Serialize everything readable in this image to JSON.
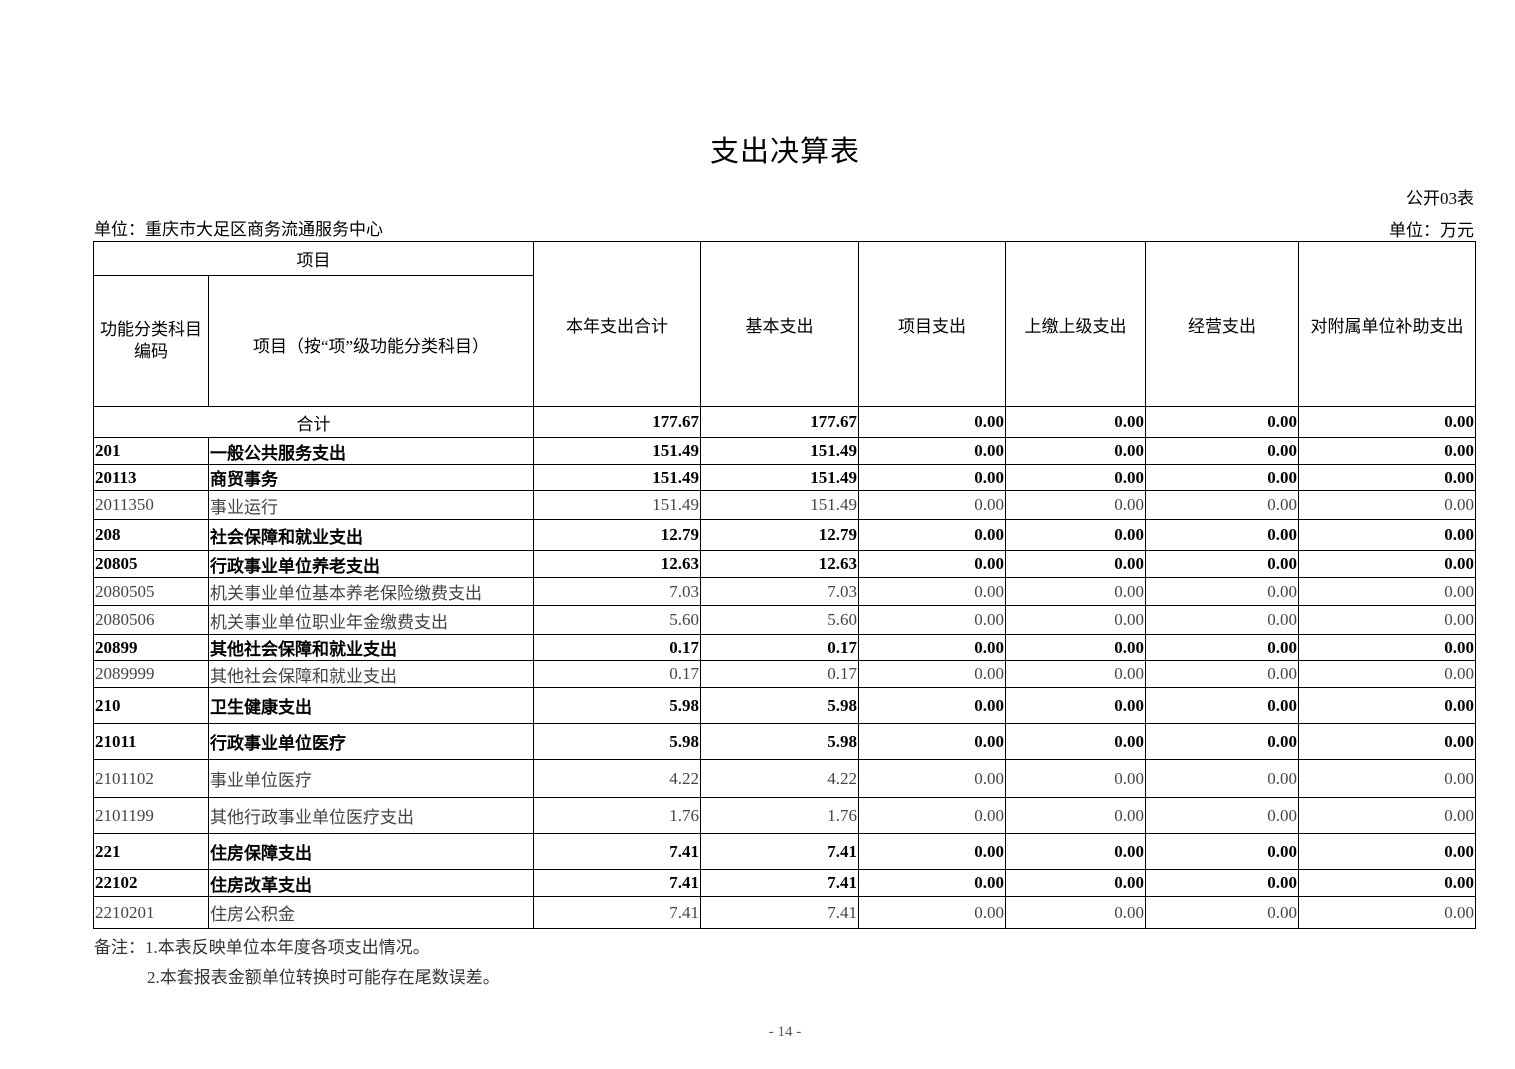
{
  "title": "支出决算表",
  "form_number": "公开03表",
  "unit_left": "单位：重庆市大足区商务流通服务中心",
  "unit_right": "单位：万元",
  "header": {
    "project_group": "项目",
    "code_col": "功能分类科目编码",
    "name_col": "项目（按“项”级功能分类科目）",
    "columns": [
      "本年支出合计",
      "基本支出",
      "项目支出",
      "上缴上级支出",
      "经营支出",
      "对附属单位补助支出"
    ]
  },
  "total": {
    "label": "合计",
    "values": [
      "177.67",
      "177.67",
      "0.00",
      "0.00",
      "0.00",
      "0.00"
    ]
  },
  "rows": [
    {
      "code": "201",
      "name": "一般公共服务支出",
      "bold": true,
      "values": [
        "151.49",
        "151.49",
        "0.00",
        "0.00",
        "0.00",
        "0.00"
      ]
    },
    {
      "code": "20113",
      "name": "商贸事务",
      "bold": true,
      "values": [
        "151.49",
        "151.49",
        "0.00",
        "0.00",
        "0.00",
        "0.00"
      ]
    },
    {
      "code": "2011350",
      "name": "事业运行",
      "bold": false,
      "values": [
        "151.49",
        "151.49",
        "0.00",
        "0.00",
        "0.00",
        "0.00"
      ]
    },
    {
      "code": "208",
      "name": "社会保障和就业支出",
      "bold": true,
      "values": [
        "12.79",
        "12.79",
        "0.00",
        "0.00",
        "0.00",
        "0.00"
      ]
    },
    {
      "code": "20805",
      "name": "行政事业单位养老支出",
      "bold": true,
      "values": [
        "12.63",
        "12.63",
        "0.00",
        "0.00",
        "0.00",
        "0.00"
      ]
    },
    {
      "code": "2080505",
      "name": "机关事业单位基本养老保险缴费支出",
      "bold": false,
      "values": [
        "7.03",
        "7.03",
        "0.00",
        "0.00",
        "0.00",
        "0.00"
      ]
    },
    {
      "code": "2080506",
      "name": "机关事业单位职业年金缴费支出",
      "bold": false,
      "values": [
        "5.60",
        "5.60",
        "0.00",
        "0.00",
        "0.00",
        "0.00"
      ]
    },
    {
      "code": "20899",
      "name": "其他社会保障和就业支出",
      "bold": true,
      "values": [
        "0.17",
        "0.17",
        "0.00",
        "0.00",
        "0.00",
        "0.00"
      ]
    },
    {
      "code": "2089999",
      "name": "其他社会保障和就业支出",
      "bold": false,
      "values": [
        "0.17",
        "0.17",
        "0.00",
        "0.00",
        "0.00",
        "0.00"
      ]
    },
    {
      "code": "210",
      "name": "卫生健康支出",
      "bold": true,
      "values": [
        "5.98",
        "5.98",
        "0.00",
        "0.00",
        "0.00",
        "0.00"
      ]
    },
    {
      "code": "21011",
      "name": "行政事业单位医疗",
      "bold": true,
      "values": [
        "5.98",
        "5.98",
        "0.00",
        "0.00",
        "0.00",
        "0.00"
      ]
    },
    {
      "code": "2101102",
      "name": "事业单位医疗",
      "bold": false,
      "values": [
        "4.22",
        "4.22",
        "0.00",
        "0.00",
        "0.00",
        "0.00"
      ]
    },
    {
      "code": "2101199",
      "name": "其他行政事业单位医疗支出",
      "bold": false,
      "values": [
        "1.76",
        "1.76",
        "0.00",
        "0.00",
        "0.00",
        "0.00"
      ]
    },
    {
      "code": "221",
      "name": "住房保障支出",
      "bold": true,
      "values": [
        "7.41",
        "7.41",
        "0.00",
        "0.00",
        "0.00",
        "0.00"
      ]
    },
    {
      "code": "22102",
      "name": "住房改革支出",
      "bold": true,
      "values": [
        "7.41",
        "7.41",
        "0.00",
        "0.00",
        "0.00",
        "0.00"
      ]
    },
    {
      "code": "2210201",
      "name": "住房公积金",
      "bold": false,
      "values": [
        "7.41",
        "7.41",
        "0.00",
        "0.00",
        "0.00",
        "0.00"
      ]
    }
  ],
  "notes": [
    "备注：1.本表反映单位本年度各项支出情况。",
    "2.本套报表金额单位转换时可能存在尾数误差。"
  ],
  "page_number": "- 14 -"
}
